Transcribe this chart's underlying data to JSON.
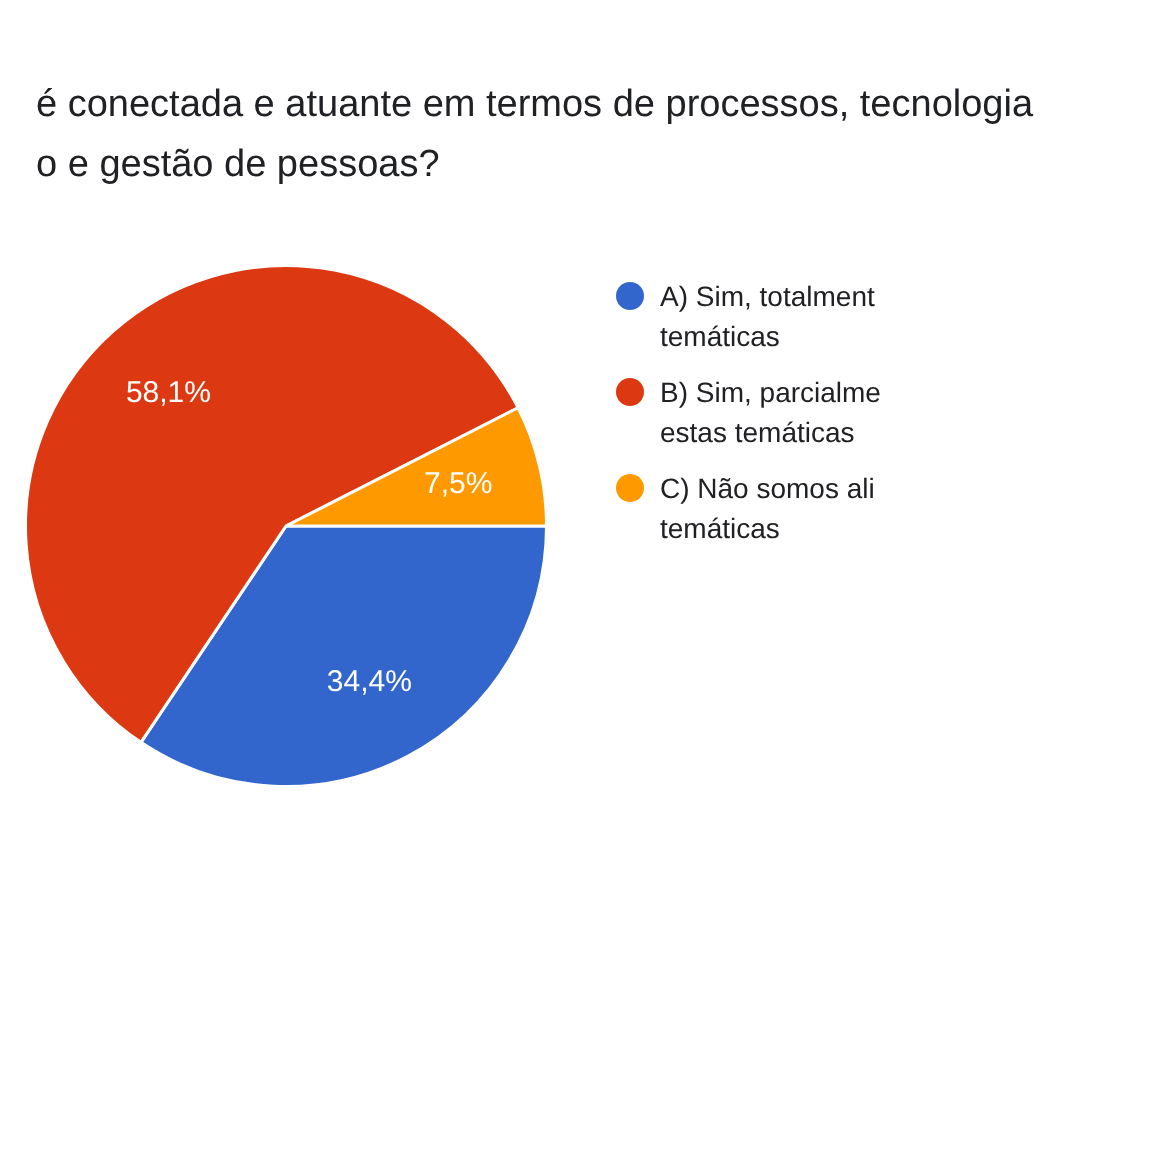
{
  "chart_data": {
    "type": "pie",
    "title": "é conectada e atuante em termos de processos, tecnologia o e gestão de pessoas?",
    "categories": [
      "A) Sim, totalment temáticas",
      "B) Sim, parcialme estas temáticas",
      "C) Não somos ali temáticas"
    ],
    "values": [
      34.4,
      58.1,
      7.5
    ],
    "colors": [
      "#3366cc",
      "#dc3912",
      "#ff9900"
    ],
    "value_labels": [
      "34,4%",
      "58,1%",
      "7,5%"
    ],
    "legend": "right"
  }
}
